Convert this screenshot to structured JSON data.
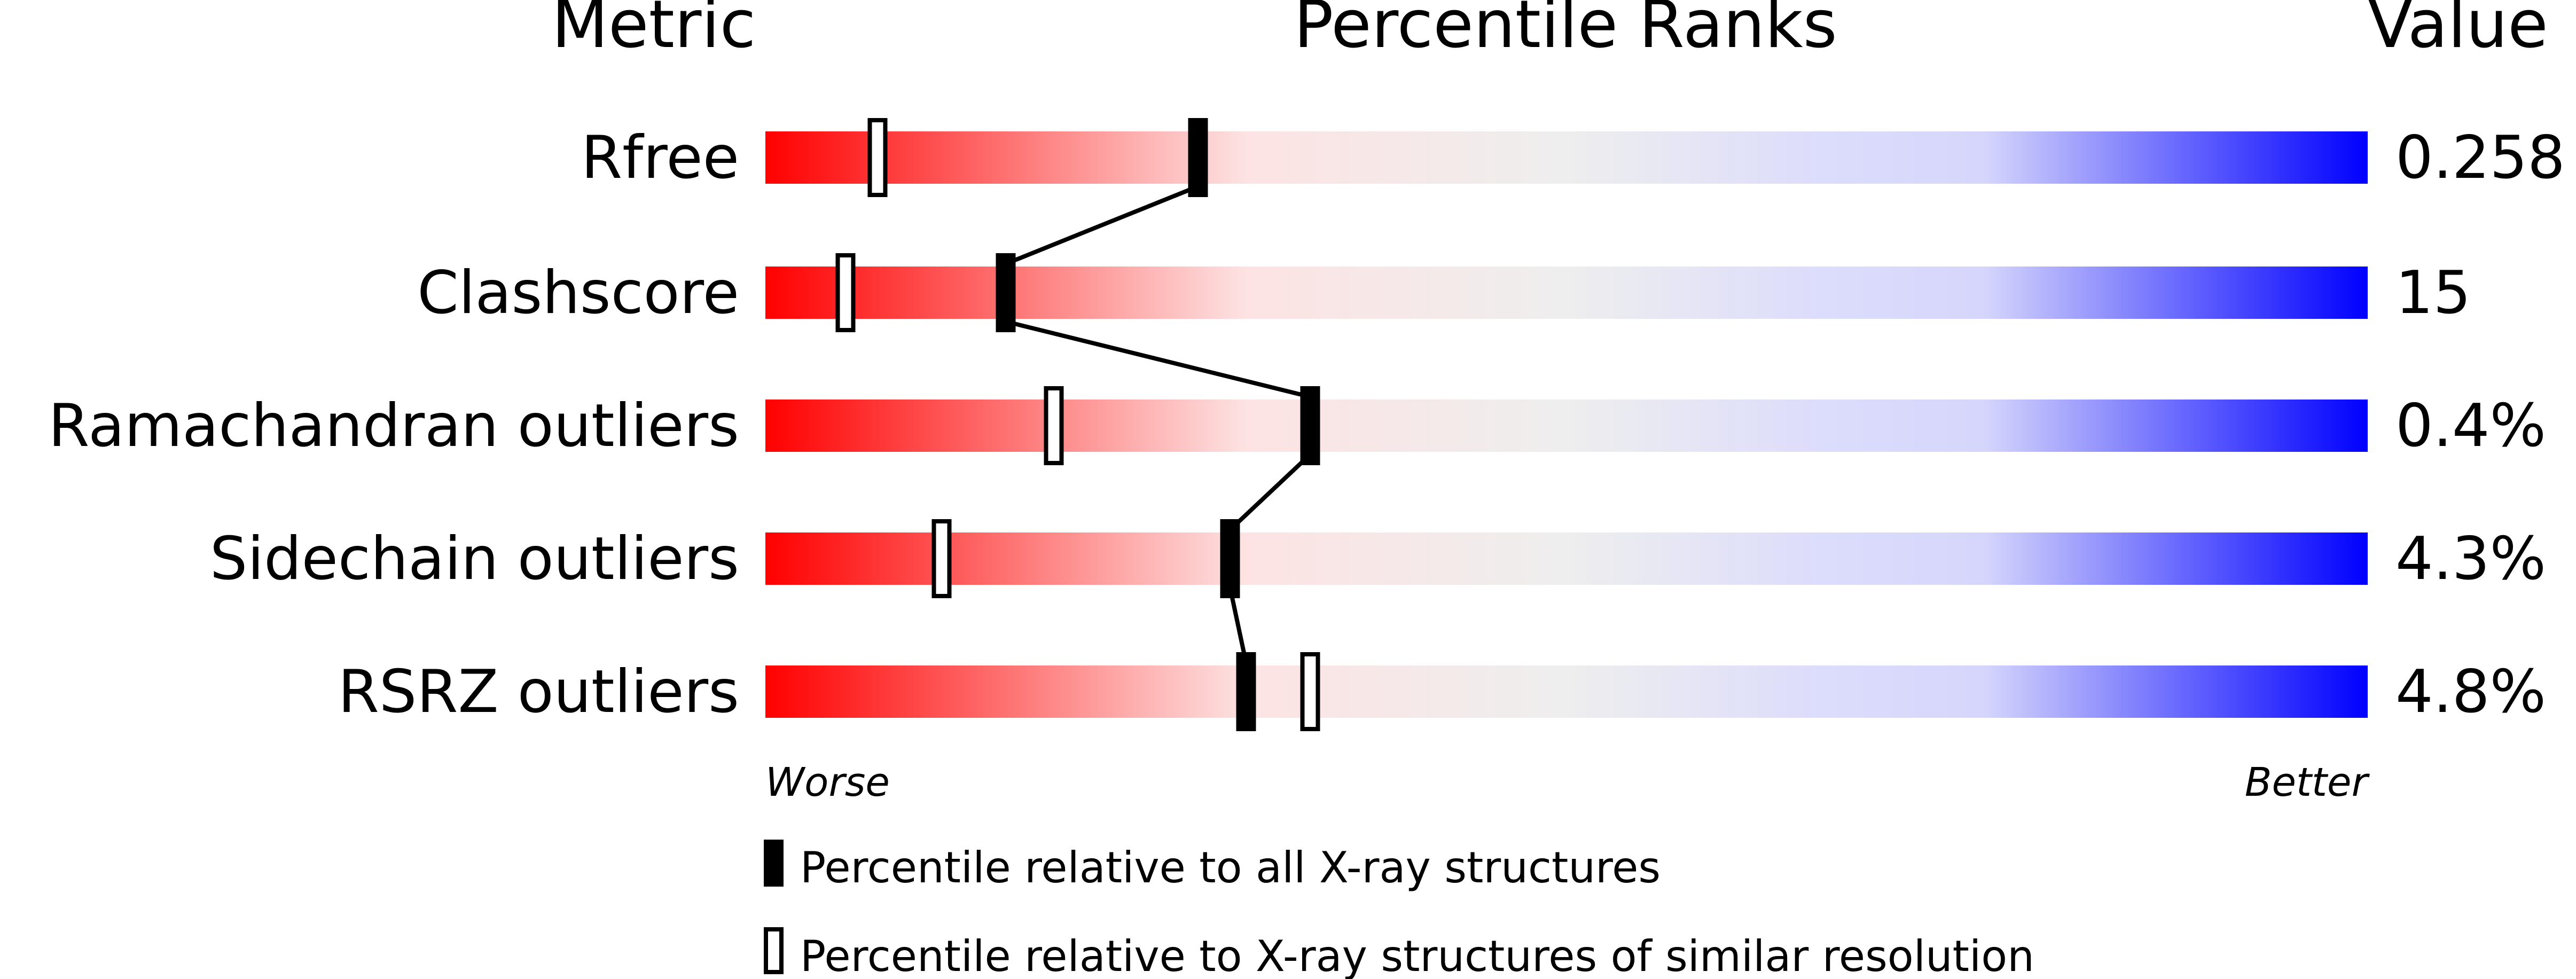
{
  "chart_data": {
    "type": "bar",
    "headers": {
      "metric": "Metric",
      "percentile": "Percentile Ranks",
      "value": "Value"
    },
    "xlim": [
      0,
      100
    ],
    "axis_labels": {
      "left": "Worse",
      "right": "Better"
    },
    "rows": [
      {
        "metric": "Rfree",
        "value": "0.258",
        "percentile_all": 27,
        "percentile_similar": 7
      },
      {
        "metric": "Clashscore",
        "value": "15",
        "percentile_all": 15,
        "percentile_similar": 5
      },
      {
        "metric": "Ramachandran outliers",
        "value": "0.4%",
        "percentile_all": 34,
        "percentile_similar": 18
      },
      {
        "metric": "Sidechain outliers",
        "value": "4.3%",
        "percentile_all": 29,
        "percentile_similar": 11
      },
      {
        "metric": "RSRZ outliers",
        "value": "4.8%",
        "percentile_all": 30,
        "percentile_similar": 34
      }
    ],
    "legend": [
      {
        "marker": "filled",
        "label": "Percentile relative to all X-ray structures"
      },
      {
        "marker": "open",
        "label": "Percentile relative to X-ray structures of similar resolution"
      }
    ],
    "gradient_colors": [
      "#ff0000",
      "#fde3e3",
      "#eeeeee",
      "#dcdcfc",
      "#0000ff"
    ]
  }
}
